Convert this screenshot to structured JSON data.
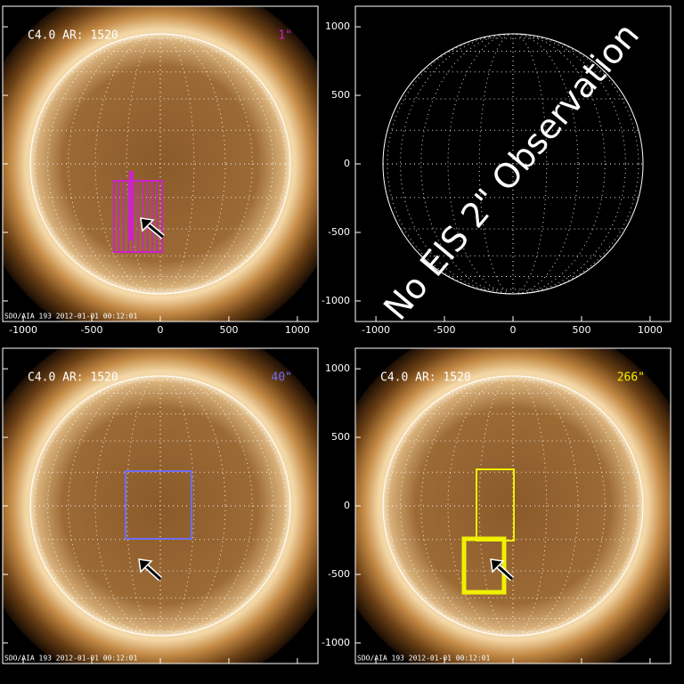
{
  "axes": {
    "xlim": [
      -1150,
      1150
    ],
    "ylim": [
      -1150,
      1150
    ],
    "xticks": [
      -1000,
      -500,
      0,
      500,
      1000
    ],
    "yticks": [
      -1000,
      -500,
      0,
      500,
      1000
    ]
  },
  "panels": [
    {
      "label": "C4.0 AR: 1520",
      "raster": "1\"",
      "raster_color": "#cc22cc",
      "footer": "SDO/AIA 193   2012-01-01 00:12:01"
    },
    {
      "note": "No EIS 2\" Observation"
    },
    {
      "label": "C4.0 AR: 1520",
      "raster": "40\"",
      "raster_color": "#6e6ef0",
      "footer": "SDO/AIA 193   2012-01-01 00:12:01"
    },
    {
      "label": "C4.0 AR: 1520",
      "raster": "266\"",
      "raster_color": "#f0f000",
      "footer": "SDO/AIA 193   2012-01-01 00:12:01"
    }
  ]
}
